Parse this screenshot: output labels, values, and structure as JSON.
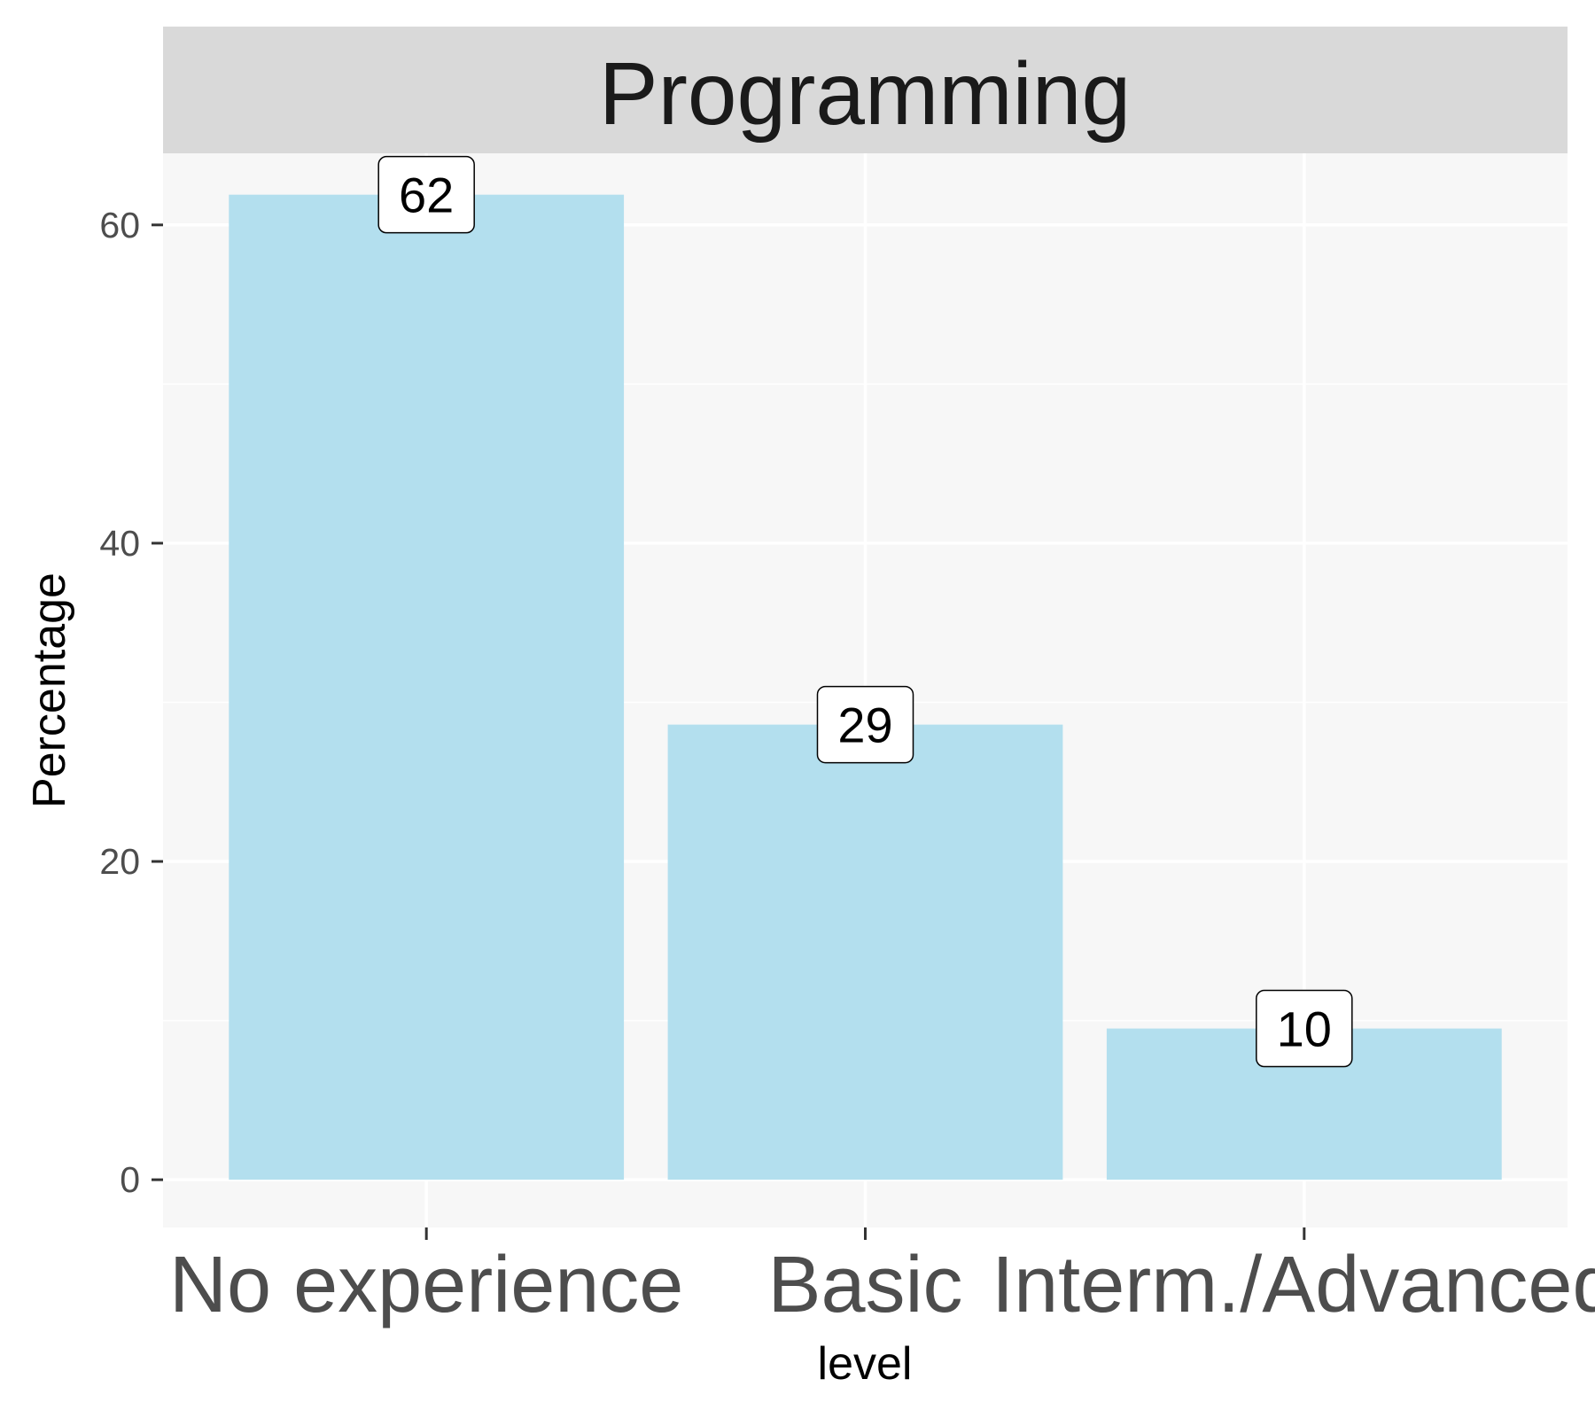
{
  "chart_data": {
    "type": "bar",
    "title": "Programming",
    "xlabel": "level",
    "ylabel": "Percentage",
    "categories": [
      "No experience",
      "Basic",
      "Interm./Advanced"
    ],
    "values": [
      61.9,
      28.6,
      9.5
    ],
    "data_labels": [
      "62",
      "29",
      "10"
    ],
    "ylim": [
      -3,
      64.5
    ],
    "yticks": [
      0,
      20,
      40,
      60
    ],
    "ytick_labels": [
      "0",
      "20",
      "40",
      "60"
    ],
    "grid": true,
    "legend": "none",
    "colors": {
      "bar": "#b3dfee",
      "panel": "#f7f7f7",
      "strip": "#d9d9d9",
      "grid": "#ffffff"
    }
  }
}
